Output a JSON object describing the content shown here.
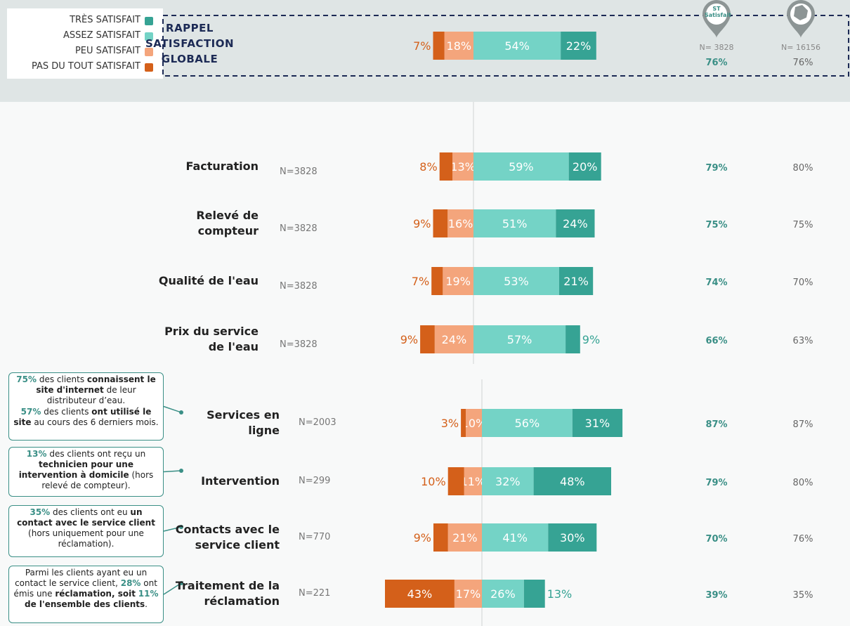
{
  "chart_data": {
    "type": "diverging_bar",
    "categories": [
      "RAPPEL SATISFACTION GLOBALE",
      "Facturation",
      "Relevé de compteur",
      "Qualité de l'eau",
      "Prix du service de l'eau",
      "Services en ligne",
      "Intervention",
      "Contacts avec le service client",
      "Traitement de la réclamation"
    ],
    "sample_sizes": [
      null,
      "N=3828",
      "N=3828",
      "N=3828",
      "N=3828",
      "N=2003",
      "N=299",
      "N=770",
      "N=221"
    ],
    "negative_series": 2,
    "series": [
      {
        "name": "PAS DU TOUT SATISFAIT",
        "color": "#d4601a",
        "values": [
          7,
          8,
          9,
          7,
          9,
          3,
          10,
          9,
          43
        ],
        "value_labels": [
          "7%",
          "8%",
          "9%",
          "7%",
          "9%",
          "3%",
          "10%",
          "9%",
          "43%"
        ]
      },
      {
        "name": "PEU SATISFAIT",
        "color": "#f4a57c",
        "values": [
          18,
          13,
          16,
          19,
          24,
          10,
          11,
          21,
          17
        ],
        "value_labels": [
          "18%",
          "13%",
          "16%",
          "19%",
          "24%",
          "10%",
          "11%",
          "21%",
          "17%"
        ]
      },
      {
        "name": "ASSEZ SATISFAIT",
        "color": "#74d3c6",
        "values": [
          54,
          59,
          51,
          53,
          57,
          56,
          32,
          41,
          26
        ],
        "value_labels": [
          "54%",
          "59%",
          "51%",
          "53%",
          "57%",
          "56%",
          "32%",
          "41%",
          "26%"
        ]
      },
      {
        "name": "TRÈS SATISFAIT",
        "color": "#36a394",
        "values": [
          22,
          20,
          24,
          21,
          9,
          31,
          48,
          30,
          13
        ],
        "value_labels": [
          "22%",
          "20%",
          "24%",
          "21%",
          "9%",
          "31%",
          "48%",
          "30%",
          "13%"
        ]
      }
    ],
    "columns": [
      {
        "header": "ST Satisfait",
        "n": "N= 3828",
        "color": "#3a8f86",
        "values": [
          76,
          79,
          75,
          74,
          66,
          87,
          79,
          70,
          39
        ],
        "value_labels": [
          "76%",
          "79%",
          "75%",
          "74%",
          "66%",
          "87%",
          "79%",
          "70%",
          "39%"
        ]
      },
      {
        "n": "N= 16156",
        "color": "#666666",
        "values": [
          76,
          80,
          75,
          70,
          63,
          87,
          80,
          76,
          35
        ],
        "value_labels": [
          "76%",
          "80%",
          "75%",
          "70%",
          "63%",
          "87%",
          "80%",
          "76%",
          "35%"
        ]
      }
    ],
    "notes": [
      {
        "paragraphs": [
          [
            {
              "text": "75%",
              "style": "accent"
            },
            {
              "text": " des clients "
            },
            {
              "text": "connaissent le site d'internet",
              "style": "bold"
            },
            {
              "text": " de leur distributeur d’eau."
            }
          ],
          [
            {
              "text": "57%",
              "style": "accent"
            },
            {
              "text": " des clients "
            },
            {
              "text": "ont utilisé le site",
              "style": "bold"
            },
            {
              "text": " au cours des 6 derniers mois."
            }
          ]
        ]
      },
      {
        "paragraphs": [
          [
            {
              "text": "13%",
              "style": "accent"
            },
            {
              "text": " des clients ont reçu un "
            },
            {
              "text": "technicien pour une intervention à domicile",
              "style": "bold"
            },
            {
              "text": " (hors relevé de compteur)."
            }
          ]
        ]
      },
      {
        "paragraphs": [
          [
            {
              "text": "35%",
              "style": "accent"
            },
            {
              "text": " des clients ont eu "
            },
            {
              "text": "un contact avec le service client",
              "style": "bold"
            },
            {
              "text": " (hors uniquement pour une réclamation)."
            }
          ]
        ]
      },
      {
        "paragraphs": [
          [
            {
              "text": "Parmi les clients ayant eu un contact le service client, "
            },
            {
              "text": "28%",
              "style": "accent"
            },
            {
              "text": " ont émis une "
            },
            {
              "text": "réclamation, soit",
              "style": "bold"
            },
            {
              "text": " "
            },
            {
              "text": "11%",
              "style": "accent"
            },
            {
              "text": " de l'ensemble des clients",
              "style": "bold"
            },
            {
              "text": "."
            }
          ]
        ]
      }
    ]
  }
}
